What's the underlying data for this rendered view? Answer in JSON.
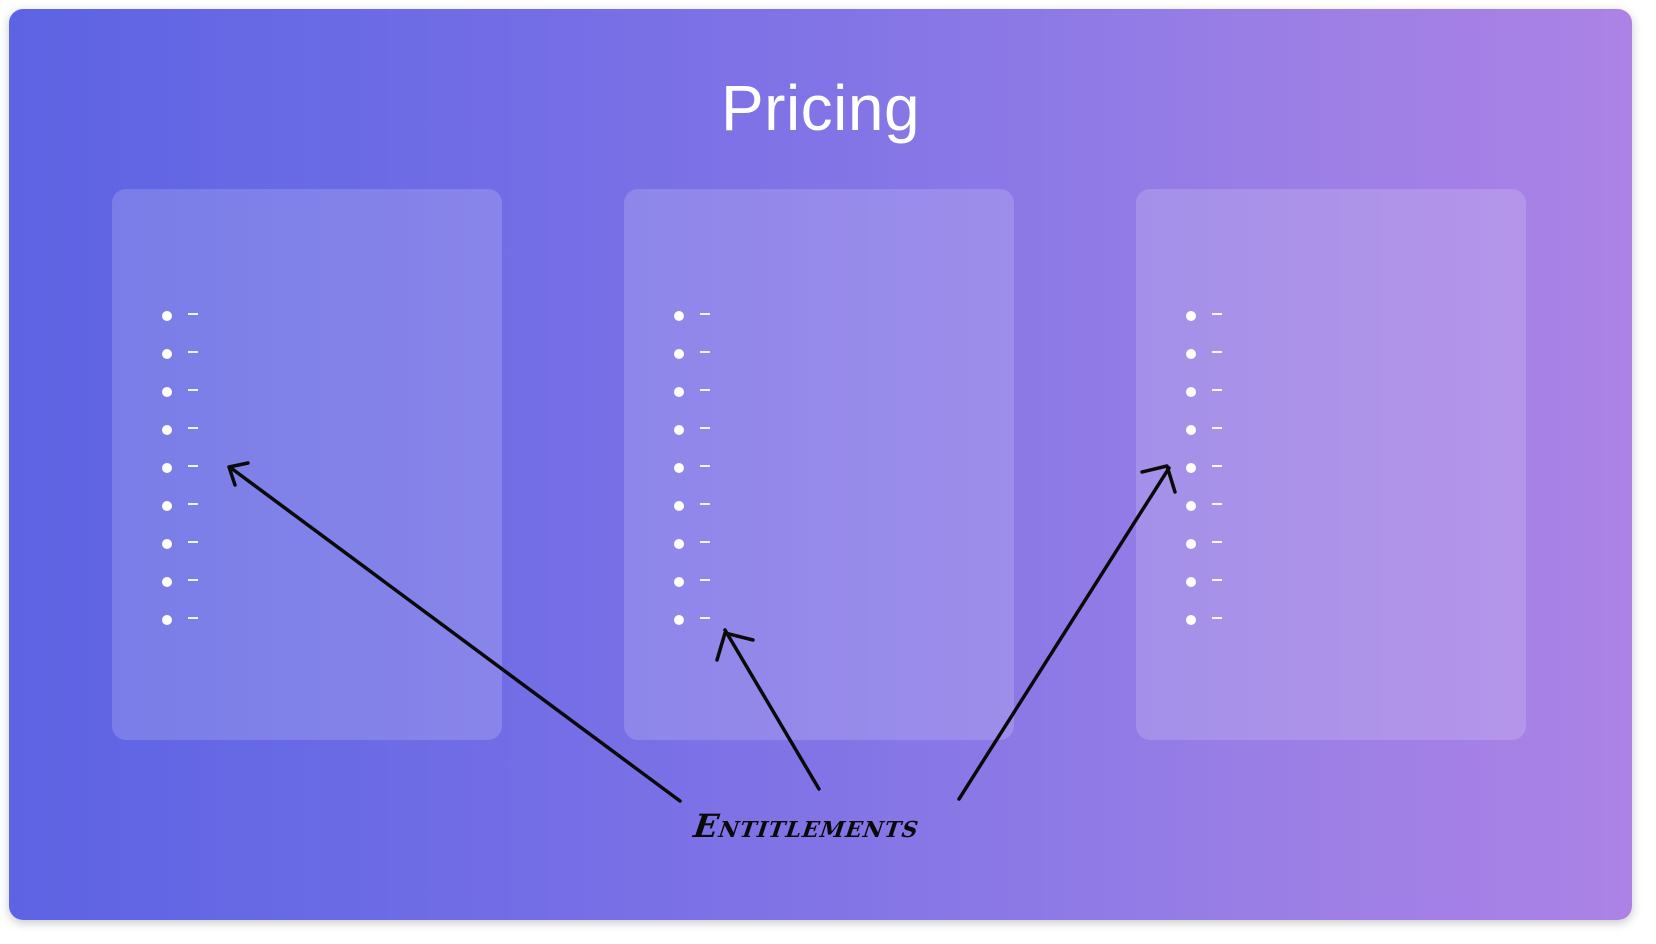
{
  "page": {
    "title": "Pricing",
    "annotation_label": "Entitlements"
  },
  "cards": [
    {
      "items": 9
    },
    {
      "items": 9
    },
    {
      "items": 9
    }
  ],
  "colors": {
    "gradient_start": "#5d63e3",
    "gradient_end": "#ac82e6",
    "text": "#ffffff",
    "annotation": "#0a0a0a"
  }
}
